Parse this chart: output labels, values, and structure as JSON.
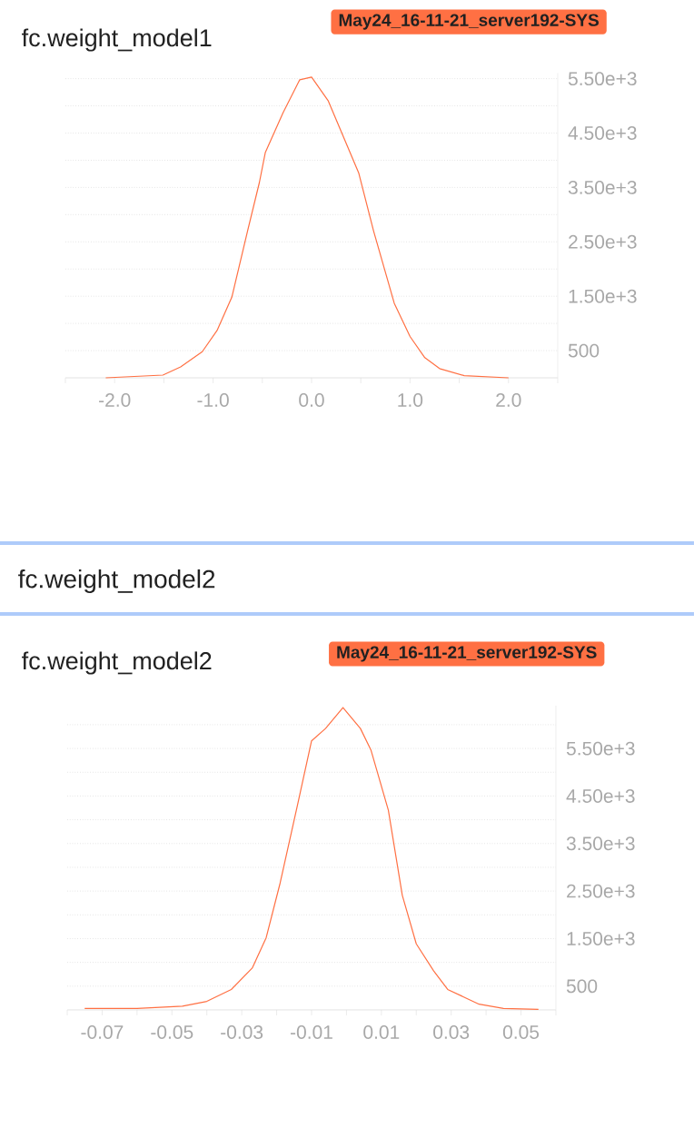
{
  "chart_data": [
    {
      "type": "line",
      "title": "fc.weight_model1",
      "legend": "top right",
      "grid": "y",
      "marker": "none",
      "xlim": [
        -2.5,
        2.5
      ],
      "ylim": [
        0,
        5600
      ],
      "xticks": [
        {
          "value": -2.5,
          "label": null
        },
        {
          "value": -2,
          "label": "-2.0"
        },
        {
          "value": -1.5,
          "label": null
        },
        {
          "value": -1,
          "label": "-1.0"
        },
        {
          "value": -0.5,
          "label": null
        },
        {
          "value": 0,
          "label": "0.0"
        },
        {
          "value": 0.5,
          "label": null
        },
        {
          "value": 1,
          "label": "1.0"
        },
        {
          "value": 1.5,
          "label": null
        },
        {
          "value": 2,
          "label": "2.0"
        },
        {
          "value": 2.5,
          "label": null
        }
      ],
      "yticks": [
        500,
        {
          "value": 1000,
          "label": null
        },
        {
          "value": 1500,
          "label": "1.50e+3"
        },
        {
          "value": 2000,
          "label": null
        },
        {
          "value": 2500,
          "label": "2.50e+3"
        },
        {
          "value": 3000,
          "label": null
        },
        {
          "value": 3500,
          "label": "3.50e+3"
        },
        {
          "value": 4000,
          "label": null
        },
        {
          "value": 4500,
          "label": "4.50e+3"
        },
        {
          "value": 5000,
          "label": null
        },
        {
          "value": 5500,
          "label": "5.50e+3"
        }
      ],
      "series": [
        {
          "name": "May24_16-11-21_server192-SYS",
          "color": "#ff7043",
          "x": [
            -2.09,
            -1.51,
            -1.33,
            -1.11,
            -0.96,
            -0.81,
            -0.65,
            -0.53,
            -0.47,
            -0.29,
            -0.12,
            0.0,
            0.17,
            0.48,
            0.63,
            0.84,
            1.0,
            1.15,
            1.3,
            1.55,
            2.0
          ],
          "values": [
            0,
            50,
            200,
            480,
            870,
            1480,
            2700,
            3590,
            4140,
            4870,
            5480,
            5530,
            5090,
            3760,
            2700,
            1370,
            760,
            370,
            170,
            40,
            0
          ]
        }
      ]
    },
    {
      "type": "line",
      "title": "fc.weight_model2",
      "annotations": [
        "fc.weight_model2"
      ],
      "legend": "top right",
      "grid": "y",
      "marker": "none",
      "xlim": [
        -0.08,
        0.06
      ],
      "ylim": [
        0,
        6400
      ],
      "xticks": [
        {
          "value": -0.08,
          "label": null
        },
        -0.07,
        {
          "value": -0.06,
          "label": null
        },
        -0.05,
        {
          "value": -0.04,
          "label": null
        },
        -0.03,
        {
          "value": -0.02,
          "label": null
        },
        -0.01,
        {
          "value": 0,
          "label": null
        },
        0.01,
        {
          "value": 0.02,
          "label": null
        },
        0.03,
        {
          "value": 0.04,
          "label": null
        },
        0.05,
        {
          "value": 0.06,
          "label": null
        }
      ],
      "yticks": [
        500,
        {
          "value": 1000,
          "label": null
        },
        {
          "value": 1500,
          "label": "1.50e+3"
        },
        {
          "value": 2000,
          "label": null
        },
        {
          "value": 2500,
          "label": "2.50e+3"
        },
        {
          "value": 3000,
          "label": null
        },
        {
          "value": 3500,
          "label": "3.50e+3"
        },
        {
          "value": 4000,
          "label": null
        },
        {
          "value": 4500,
          "label": "4.50e+3"
        },
        {
          "value": 5000,
          "label": null
        },
        {
          "value": 5500,
          "label": "5.50e+3"
        },
        {
          "value": 6000,
          "label": null
        }
      ],
      "series": [
        {
          "name": "May24_16-11-21_server192-SYS",
          "color": "#ff7043",
          "x": [
            -0.075,
            -0.06,
            -0.047,
            -0.04,
            -0.033,
            -0.027,
            -0.023,
            -0.019,
            -0.014,
            -0.01,
            -0.006,
            -0.001,
            0.004,
            0.007,
            0.012,
            0.016,
            0.02,
            0.025,
            0.029,
            0.038,
            0.045,
            0.055
          ],
          "values": [
            30,
            30,
            80,
            180,
            430,
            880,
            1520,
            2670,
            4320,
            5660,
            5920,
            6360,
            5920,
            5470,
            4200,
            2410,
            1390,
            820,
            430,
            120,
            30,
            10
          ]
        }
      ]
    }
  ]
}
